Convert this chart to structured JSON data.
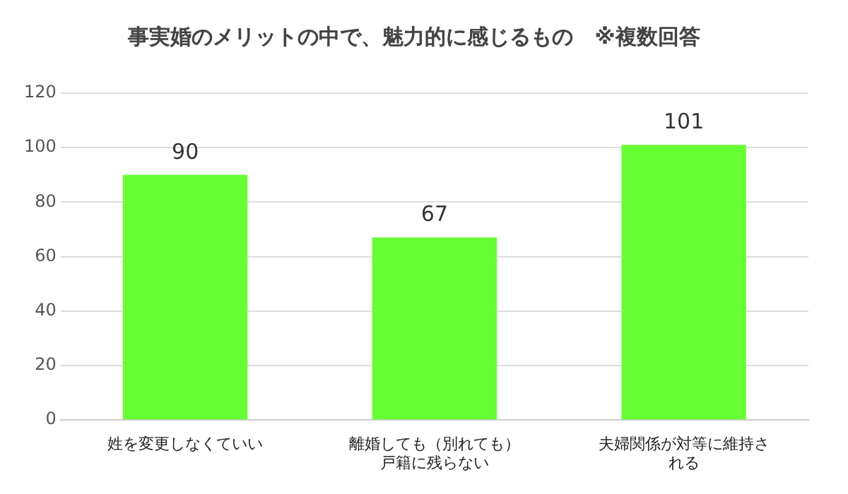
{
  "chart_data": {
    "type": "bar",
    "title": "事実婚のメリットの中で、魅力的に感じるもの　※複数回答",
    "categories": [
      "姓を変更しなくていい",
      "離婚しても（別れても）戸籍に残らない",
      "夫婦関係が対等に維持される"
    ],
    "values": [
      90,
      67,
      101
    ],
    "color": "#66ff33",
    "ylim": [
      0,
      120
    ],
    "yticks": [
      0,
      20,
      40,
      60,
      80,
      100,
      120
    ],
    "grid": "y",
    "data_labels": true,
    "legend": false
  }
}
